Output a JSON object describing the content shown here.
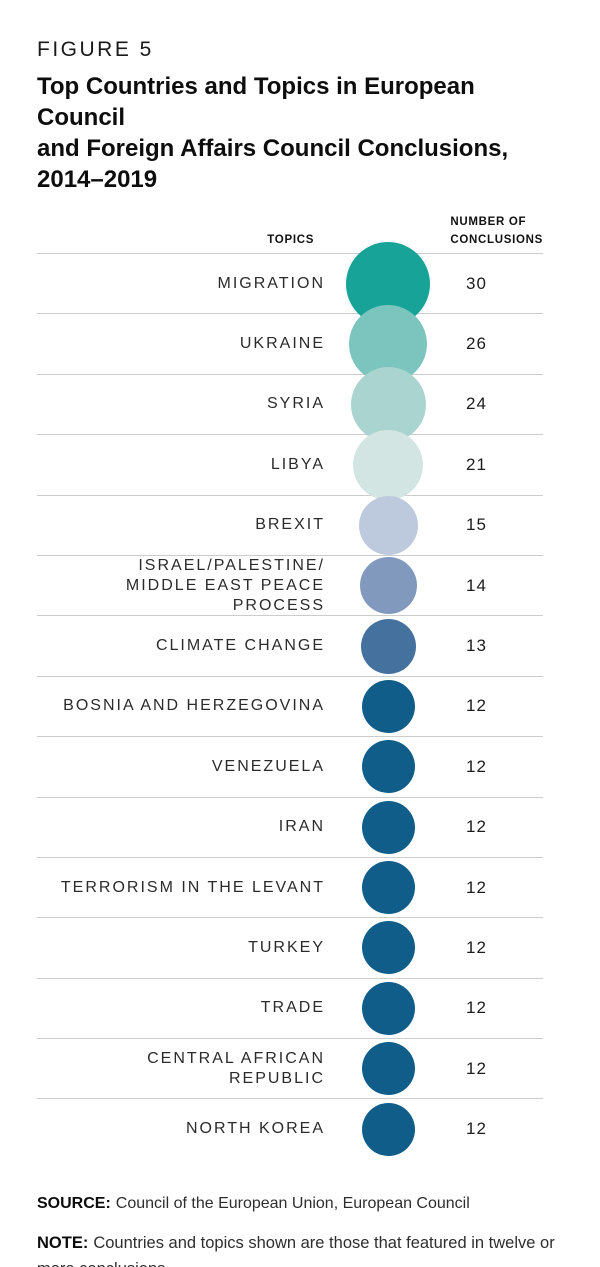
{
  "figure": {
    "label": "FIGURE 5",
    "title_lines": [
      "Top Countries and Topics in European Council",
      "and Foreign Affairs Council Conclusions,",
      "2014–2019"
    ]
  },
  "table_headers": {
    "topics": "TOPICS",
    "number": "NUMBER OF\nCONCLUSIONS"
  },
  "chart_data": {
    "type": "table",
    "title": "Top Countries and Topics in European Council and Foreign Affairs Council Conclusions, 2014–2019",
    "columns": [
      "TOPICS",
      "NUMBER OF CONCLUSIONS"
    ],
    "encoding": "circle area proportional to number of conclusions; color ramps from teal (high) to dark blue (low)",
    "value_range": [
      12,
      30
    ],
    "rows": [
      {
        "label_lines": [
          "MIGRATION"
        ],
        "value": 30,
        "color": "#17a398"
      },
      {
        "label_lines": [
          "UKRAINE"
        ],
        "value": 26,
        "color": "#7cc5be"
      },
      {
        "label_lines": [
          "SYRIA"
        ],
        "value": 24,
        "color": "#aad4cf"
      },
      {
        "label_lines": [
          "LIBYA"
        ],
        "value": 21,
        "color": "#d3e5e2"
      },
      {
        "label_lines": [
          "BREXIT"
        ],
        "value": 15,
        "color": "#bdc9dd"
      },
      {
        "label_lines": [
          "ISRAEL/PALESTINE/",
          "MIDDLE EAST PEACE PROCESS"
        ],
        "value": 14,
        "color": "#8199bd"
      },
      {
        "label_lines": [
          "CLIMATE CHANGE"
        ],
        "value": 13,
        "color": "#45719e"
      },
      {
        "label_lines": [
          "BOSNIA AND HERZEGOVINA"
        ],
        "value": 12,
        "color": "#115d8a"
      },
      {
        "label_lines": [
          "VENEZUELA"
        ],
        "value": 12,
        "color": "#115d8a"
      },
      {
        "label_lines": [
          "IRAN"
        ],
        "value": 12,
        "color": "#115d8a"
      },
      {
        "label_lines": [
          "TERRORISM IN THE LEVANT"
        ],
        "value": 12,
        "color": "#115d8a"
      },
      {
        "label_lines": [
          "TURKEY"
        ],
        "value": 12,
        "color": "#115d8a"
      },
      {
        "label_lines": [
          "TRADE"
        ],
        "value": 12,
        "color": "#115d8a"
      },
      {
        "label_lines": [
          "CENTRAL AFRICAN",
          "REPUBLIC"
        ],
        "value": 12,
        "color": "#115d8a"
      },
      {
        "label_lines": [
          "NORTH KOREA"
        ],
        "value": 12,
        "color": "#115d8a"
      }
    ]
  },
  "footer": {
    "source_label": "SOURCE:",
    "source_text": "Council of the European Union, European Council",
    "note_label": "NOTE:",
    "note_text": "Countries and topics shown are those that featured in twelve or more conclusions."
  },
  "colors": {
    "divider": "#cbcdcd",
    "title_text": "#0d0d0d",
    "body_text": "#2b2b2b"
  }
}
